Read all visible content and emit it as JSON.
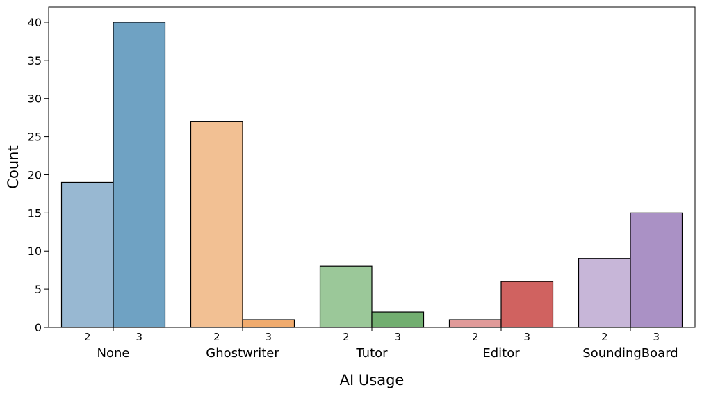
{
  "chart_data": {
    "type": "bar",
    "xlabel": "AI Usage",
    "ylabel": "Count",
    "ylim": [
      0,
      42
    ],
    "yticks": [
      0,
      5,
      10,
      15,
      20,
      25,
      30,
      35,
      40
    ],
    "grid": false,
    "legend": "none",
    "sub_categories": [
      "2",
      "3"
    ],
    "groups": [
      {
        "name": "None",
        "values": [
          19,
          40
        ],
        "colors": [
          "#98b8d2",
          "#6fa2c3"
        ]
      },
      {
        "name": "Ghostwriter",
        "values": [
          27,
          1
        ],
        "colors": [
          "#f2c093",
          "#f0ab6e"
        ]
      },
      {
        "name": "Tutor",
        "values": [
          8,
          2
        ],
        "colors": [
          "#9bc899",
          "#72ae70"
        ]
      },
      {
        "name": "Editor",
        "values": [
          1,
          6
        ],
        "colors": [
          "#e09a99",
          "#d06260"
        ]
      },
      {
        "name": "SoundingBoard",
        "values": [
          9,
          15
        ],
        "colors": [
          "#c7b6d8",
          "#aa91c5"
        ]
      }
    ]
  }
}
